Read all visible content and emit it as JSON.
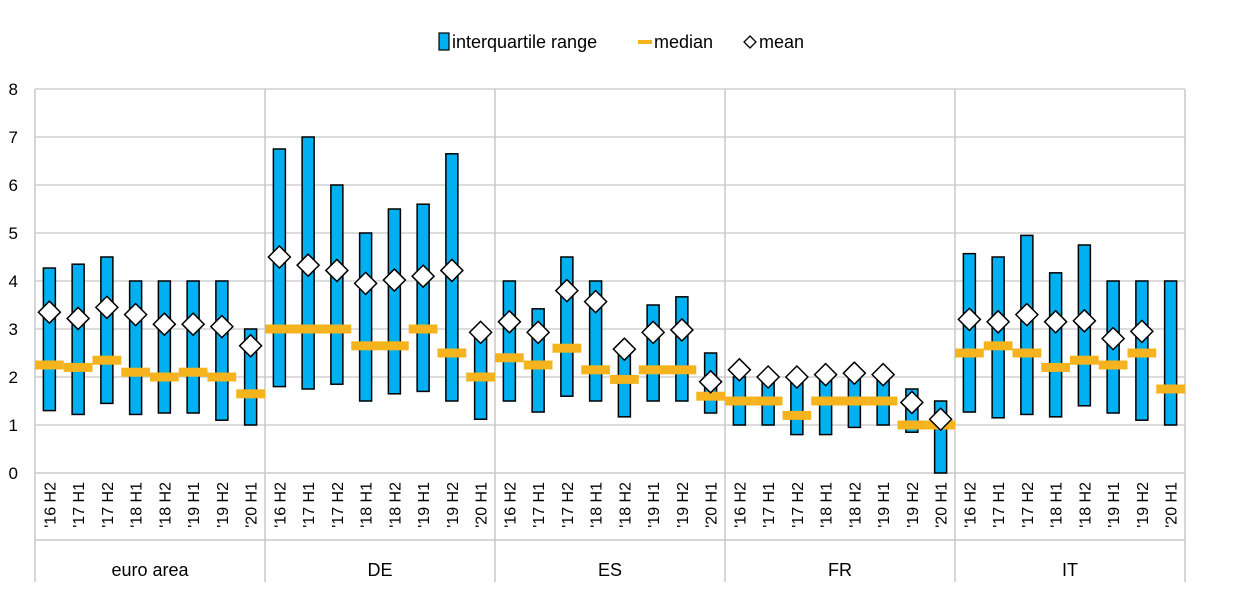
{
  "chart_data": {
    "type": "box",
    "legend": [
      {
        "key": "iqr",
        "label": "interquartile range",
        "color": "#00b0f0"
      },
      {
        "key": "median",
        "label": "median",
        "color": "#f5b41e"
      },
      {
        "key": "mean",
        "label": "mean",
        "color": "#ffffff"
      }
    ],
    "legend_position": "top-center",
    "ylim": [
      0,
      8
    ],
    "yticks": [
      "0",
      "1",
      "2",
      "3",
      "4",
      "5",
      "6",
      "7",
      "8"
    ],
    "grid": true,
    "periods": [
      "'16 H2",
      "'17 H1",
      "'17 H2",
      "'18 H1",
      "'18 H2",
      "'19 H1",
      "'19 H2",
      "'20 H1"
    ],
    "groups": [
      {
        "name": "euro area",
        "q1": [
          1.3,
          1.22,
          1.45,
          1.22,
          1.25,
          1.25,
          1.1,
          1.0
        ],
        "q3": [
          4.27,
          4.35,
          4.5,
          4.0,
          4.0,
          4.0,
          4.0,
          3.0
        ],
        "median": [
          2.25,
          2.2,
          2.35,
          2.1,
          2.0,
          2.1,
          2.0,
          1.65
        ],
        "mean": [
          3.35,
          3.22,
          3.45,
          3.3,
          3.1,
          3.1,
          3.05,
          2.65
        ]
      },
      {
        "name": "DE",
        "q1": [
          1.8,
          1.75,
          1.85,
          1.5,
          1.65,
          1.7,
          1.5,
          1.12
        ],
        "q3": [
          6.75,
          7.0,
          6.0,
          5.0,
          5.5,
          5.6,
          6.65,
          2.9
        ],
        "median": [
          3.0,
          3.0,
          3.0,
          2.65,
          2.65,
          3.0,
          2.5,
          2.0
        ],
        "mean": [
          4.5,
          4.33,
          4.22,
          3.95,
          4.02,
          4.1,
          4.22,
          2.93
        ]
      },
      {
        "name": "ES",
        "q1": [
          1.5,
          1.27,
          1.6,
          1.5,
          1.17,
          1.5,
          1.5,
          1.25
        ],
        "q3": [
          4.0,
          3.42,
          4.5,
          4.0,
          2.6,
          3.5,
          3.67,
          2.5
        ],
        "median": [
          2.4,
          2.25,
          2.6,
          2.15,
          1.95,
          2.15,
          2.15,
          1.6
        ],
        "mean": [
          3.15,
          2.93,
          3.8,
          3.57,
          2.58,
          2.93,
          2.98,
          1.9
        ]
      },
      {
        "name": "FR",
        "q1": [
          1.0,
          1.0,
          0.8,
          0.8,
          0.95,
          1.0,
          0.85,
          0.0
        ],
        "q3": [
          2.0,
          2.0,
          2.0,
          2.0,
          2.0,
          2.0,
          1.75,
          1.5
        ],
        "median": [
          1.5,
          1.5,
          1.2,
          1.5,
          1.5,
          1.5,
          1.0,
          1.0
        ],
        "mean": [
          2.15,
          2.0,
          2.0,
          2.05,
          2.08,
          2.05,
          1.47,
          1.12
        ]
      },
      {
        "name": "IT",
        "q1": [
          1.27,
          1.15,
          1.22,
          1.17,
          1.4,
          1.25,
          1.1,
          1.0
        ],
        "q3": [
          4.57,
          4.5,
          4.95,
          4.17,
          4.75,
          4.0,
          4.0,
          4.0
        ],
        "median": [
          2.5,
          2.65,
          2.5,
          2.2,
          2.35,
          2.25,
          2.5,
          1.75
        ],
        "mean": [
          3.2,
          3.15,
          3.3,
          3.15,
          3.17,
          2.8,
          2.95,
          null
        ]
      }
    ]
  }
}
